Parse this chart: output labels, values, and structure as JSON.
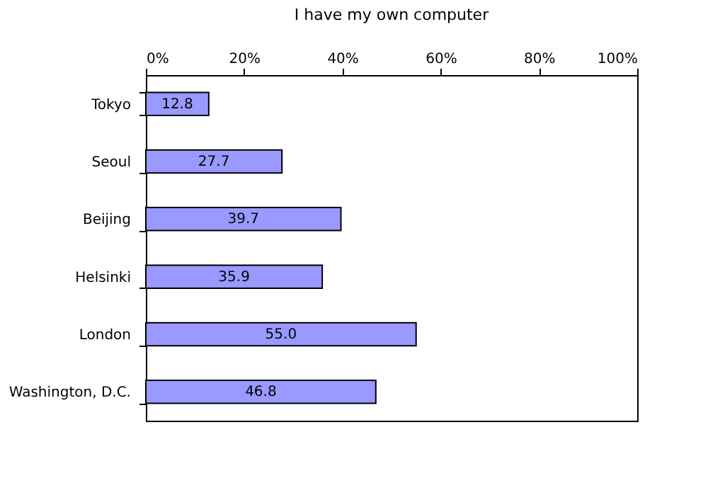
{
  "chart_data": {
    "type": "bar",
    "orientation": "horizontal",
    "title": "I have my own computer",
    "categories": [
      "Tokyo",
      "Seoul",
      "Beijing",
      "Helsinki",
      "London",
      "Washington, D.C."
    ],
    "values": [
      12.8,
      27.7,
      39.7,
      35.9,
      55.0,
      46.8
    ],
    "value_labels": [
      "12.8",
      "27.7",
      "39.7",
      "35.9",
      "55.0",
      "46.8"
    ],
    "color": "#9999ff",
    "xlim": [
      0,
      100
    ],
    "xticks": [
      {
        "value": 0,
        "label": "0%"
      },
      {
        "value": 20,
        "label": "20%"
      },
      {
        "value": 40,
        "label": "40%"
      },
      {
        "value": 60,
        "label": "60%"
      },
      {
        "value": 80,
        "label": "80%"
      },
      {
        "value": 100,
        "label": "100%"
      }
    ],
    "grid": false
  }
}
